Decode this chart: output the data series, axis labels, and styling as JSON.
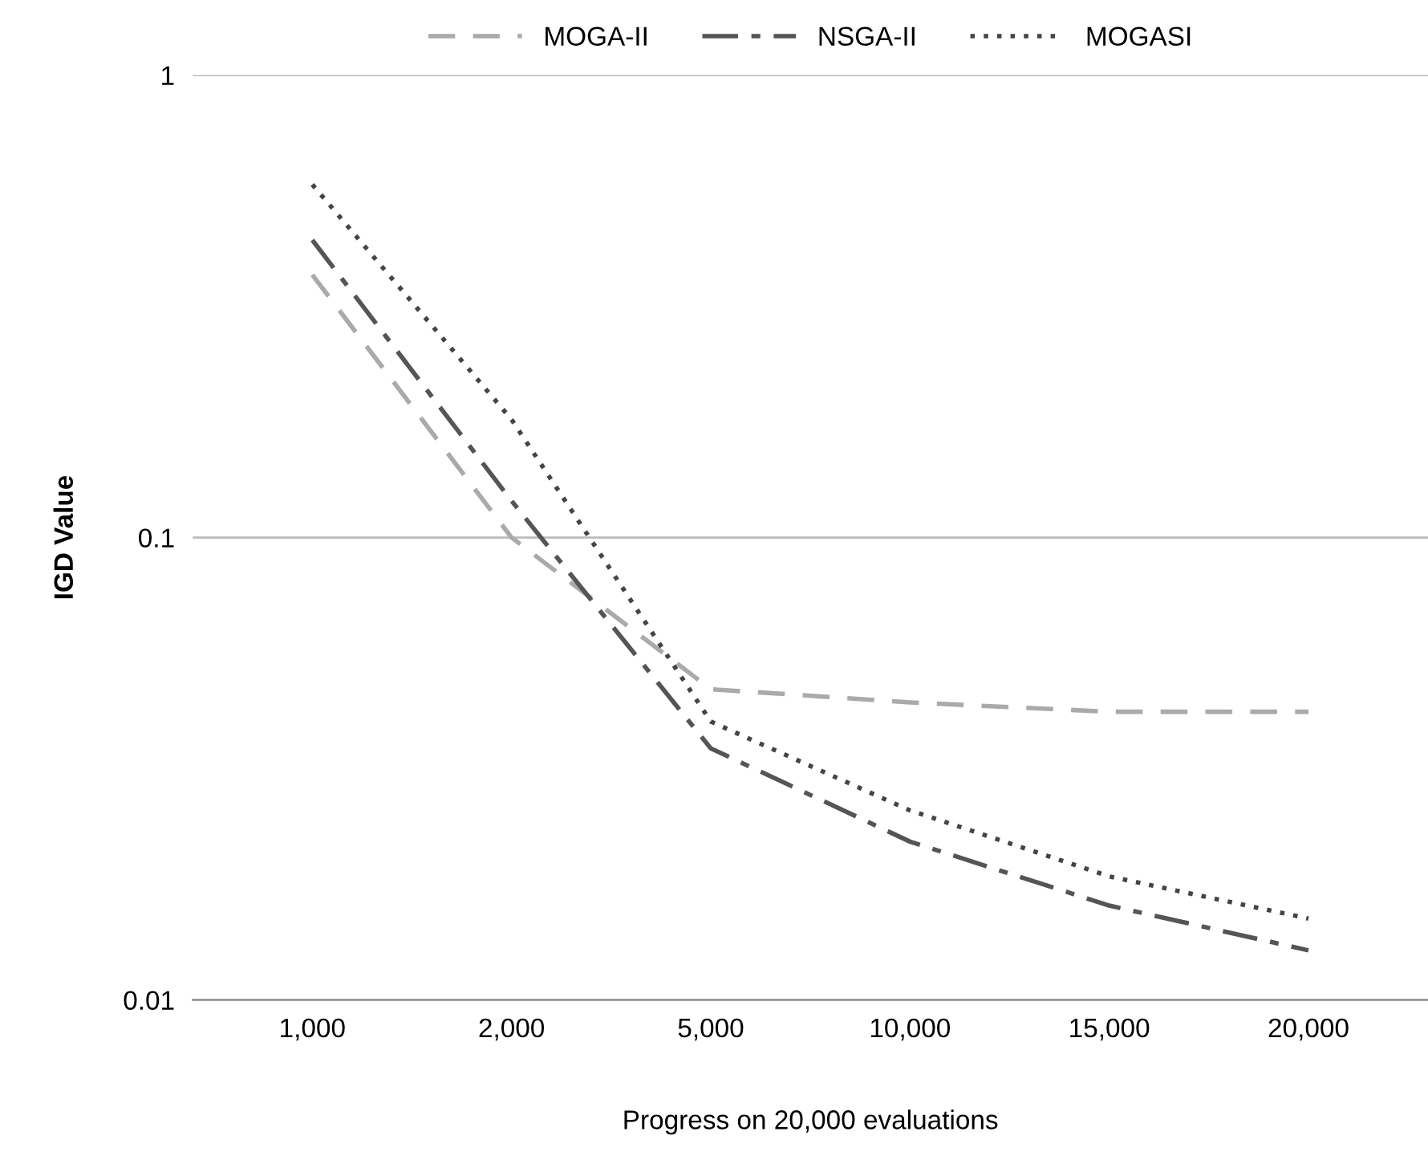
{
  "chart_data": {
    "type": "line",
    "xlabel": "Progress on 20,000 evaluations",
    "ylabel": "IGD Value",
    "categories": [
      "1,000",
      "2,000",
      "5,000",
      "10,000",
      "15,000",
      "20,000"
    ],
    "series": [
      {
        "name": "MOGA-II",
        "color": "#aaaaaa",
        "line_style": "dashed",
        "values": [
          0.37,
          0.1,
          0.047,
          0.044,
          0.042,
          0.042
        ]
      },
      {
        "name": "NSGA-II",
        "color": "#555555",
        "line_style": "dashdot",
        "values": [
          0.44,
          0.12,
          0.035,
          0.022,
          0.016,
          0.0128
        ]
      },
      {
        "name": "MOGASI",
        "color": "#444444",
        "line_style": "dotted",
        "values": [
          0.58,
          0.18,
          0.04,
          0.0257,
          0.0185,
          0.015
        ]
      }
    ],
    "log": "y",
    "ylim": [
      0.01,
      1
    ],
    "yticks": [
      0.01,
      0.1,
      1
    ],
    "grid": "y",
    "legend": "top",
    "marker": "none"
  }
}
